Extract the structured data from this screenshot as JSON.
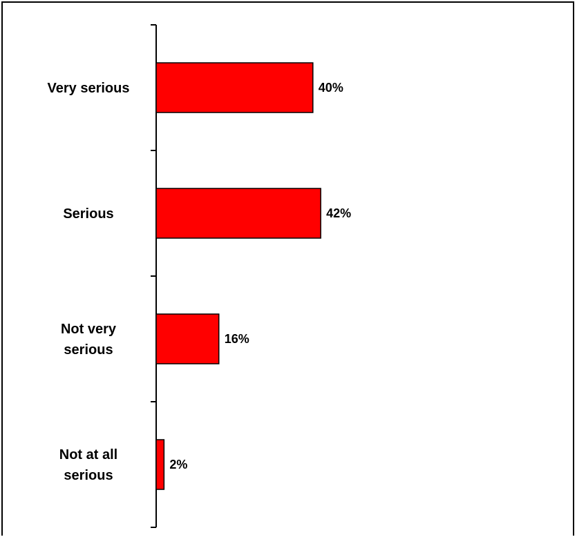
{
  "chart_data": {
    "type": "bar",
    "orientation": "horizontal",
    "categories": [
      [
        "Very serious"
      ],
      [
        "Serious"
      ],
      [
        "Not very",
        "serious"
      ],
      [
        "Not at all",
        "serious"
      ]
    ],
    "values": [
      40,
      42,
      16,
      2
    ],
    "data_labels": [
      "40%",
      "42%",
      "16%",
      "2%"
    ],
    "unit": "%",
    "bar_color": "#ff0000",
    "bar_outline": "#000000",
    "xlim": [
      0,
      100
    ],
    "grid": false,
    "legend": "none"
  }
}
